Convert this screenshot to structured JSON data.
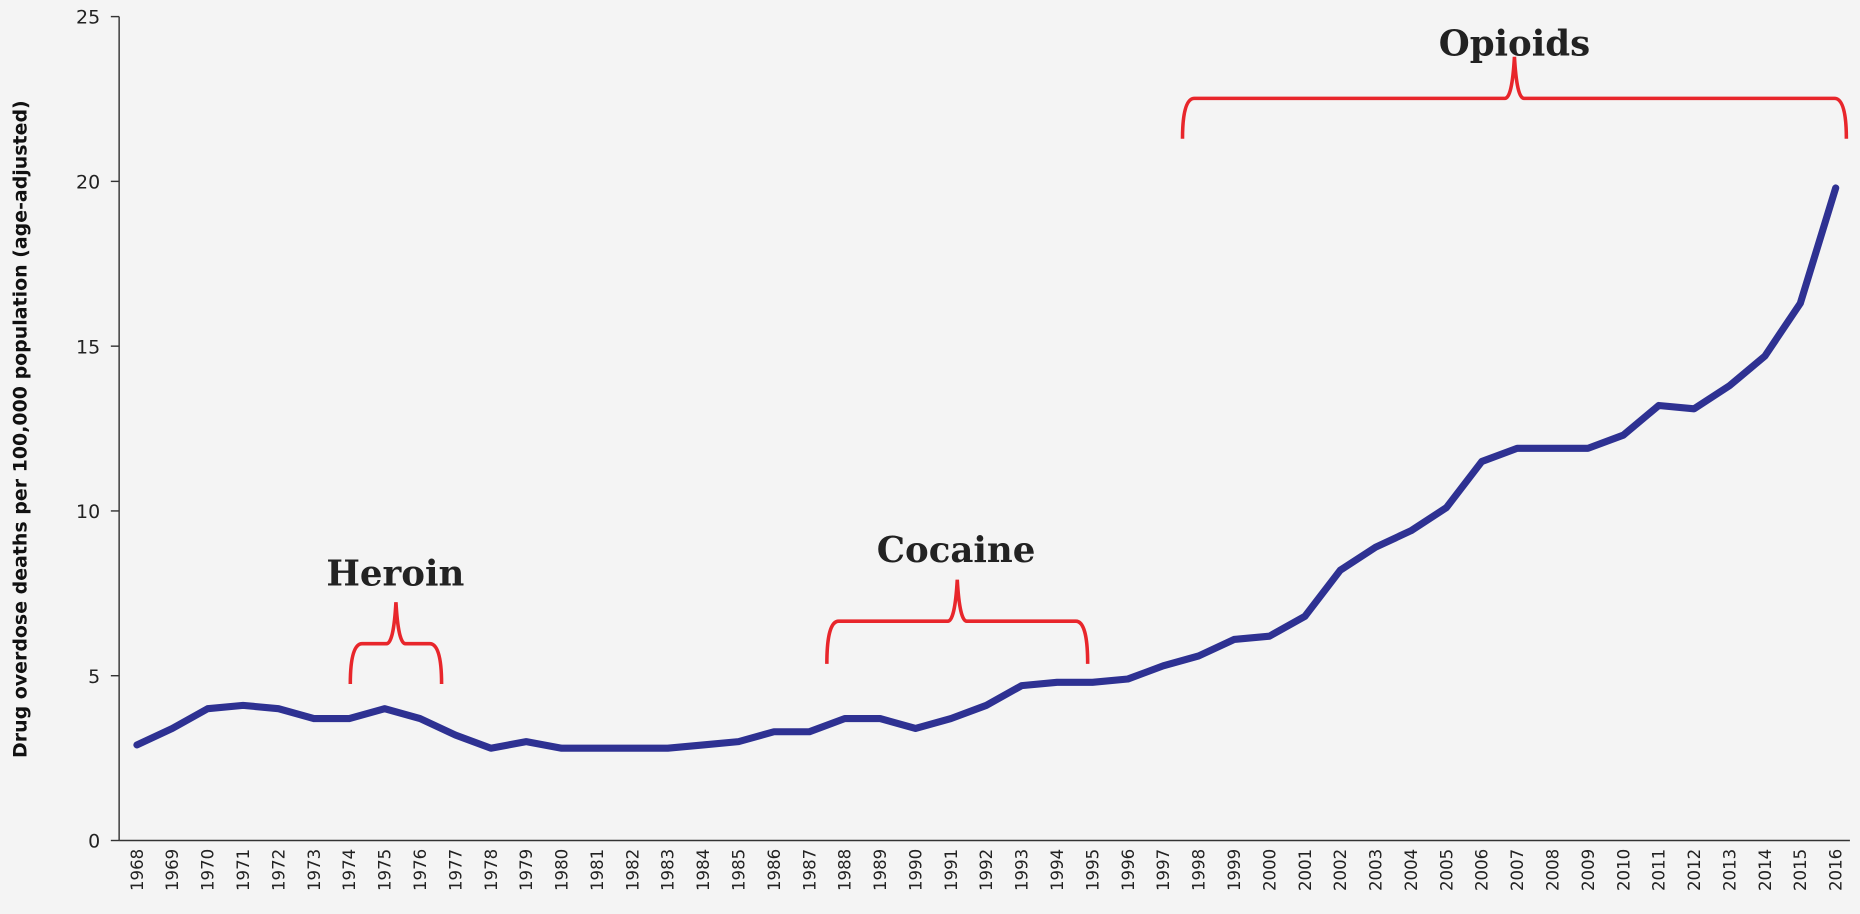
{
  "chart_data": {
    "type": "line",
    "y_label": "Drug overdose deaths per 100,000 population (age-adjusted)",
    "categories": [
      "1968",
      "1969",
      "1970",
      "1971",
      "1972",
      "1973",
      "1974",
      "1975",
      "1976",
      "1977",
      "1978",
      "1979",
      "1980",
      "1981",
      "1982",
      "1983",
      "1984",
      "1985",
      "1986",
      "1987",
      "1988",
      "1989",
      "1990",
      "1991",
      "1992",
      "1993",
      "1994",
      "1995",
      "1996",
      "1997",
      "1998",
      "1999",
      "2000",
      "2001",
      "2002",
      "2003",
      "2004",
      "2005",
      "2006",
      "2007",
      "2008",
      "2009",
      "2010",
      "2011",
      "2012",
      "2013",
      "2014",
      "2015",
      "2016"
    ],
    "series": [
      {
        "color": "#2e3192",
        "values": [
          2.9,
          3.4,
          4.0,
          4.1,
          4.0,
          3.7,
          3.7,
          4.0,
          3.7,
          3.2,
          2.8,
          3.0,
          2.8,
          2.8,
          2.8,
          2.8,
          2.9,
          3.0,
          3.3,
          3.3,
          3.7,
          3.7,
          3.4,
          3.7,
          4.1,
          4.7,
          4.8,
          4.8,
          4.9,
          5.3,
          5.6,
          6.1,
          6.2,
          6.8,
          8.2,
          8.9,
          9.4,
          10.1,
          11.5,
          11.9,
          11.9,
          11.9,
          12.3,
          13.2,
          13.1,
          13.8,
          14.7,
          16.3,
          19.8
        ]
      }
    ],
    "ylim": [
      0,
      25
    ],
    "yticks": [
      0,
      5,
      10,
      15,
      20,
      25
    ],
    "annotations": [
      "Heroin",
      "Cocaine",
      "Opioids"
    ],
    "annotation_color": "#e8262b"
  }
}
